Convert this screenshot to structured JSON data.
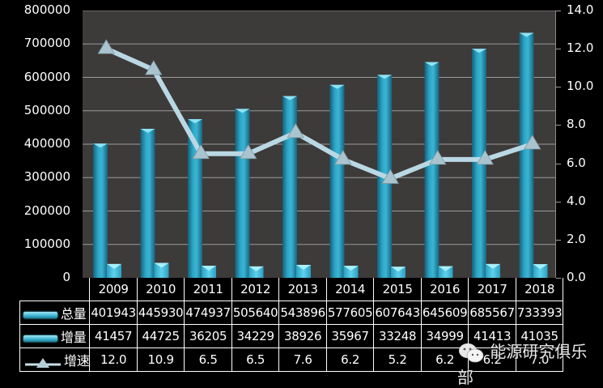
{
  "chart_data": {
    "type": "bar",
    "title": "",
    "xlabel": "",
    "ylabel": "",
    "categories": [
      "2009",
      "2010",
      "2011",
      "2012",
      "2013",
      "2014",
      "2015",
      "2016",
      "2017",
      "2018"
    ],
    "series": [
      {
        "name": "总量",
        "type": "bar",
        "axis": "left",
        "values": [
          401943,
          445930,
          474937,
          505640,
          543896,
          577605,
          607643,
          645609,
          685567,
          733393
        ],
        "color": "#2a9dbc"
      },
      {
        "name": "增量",
        "type": "bar",
        "axis": "left",
        "values": [
          41457,
          44725,
          36205,
          34229,
          38926,
          35967,
          33248,
          34999,
          41413,
          41035
        ],
        "color": "#4fc9e4"
      },
      {
        "name": "增速",
        "type": "line",
        "axis": "right",
        "values": [
          12.0,
          10.9,
          6.5,
          6.5,
          7.6,
          6.2,
          5.2,
          6.2,
          6.2,
          7.0
        ],
        "color": "#b7d6e2",
        "marker": "triangle"
      }
    ],
    "ylim": [
      0,
      800000
    ],
    "y2lim": [
      0,
      14.0
    ],
    "yticks": [
      "0",
      "100000",
      "200000",
      "300000",
      "400000",
      "500000",
      "600000",
      "700000",
      "800000"
    ],
    "y2ticks": [
      "0.0",
      "2.0",
      "4.0",
      "6.0",
      "8.0",
      "10.0",
      "12.0",
      "14.0"
    ],
    "grid": true,
    "legend_position": "data-table-left",
    "data_table": true,
    "plot_background": "#3d3a3a",
    "background": "#000000"
  },
  "table": {
    "rows": [
      {
        "label": "总量",
        "legend": "bar",
        "cells": [
          "401943",
          "445930",
          "474937",
          "505640",
          "543896",
          "577605",
          "607643",
          "645609",
          "685567",
          "733393"
        ]
      },
      {
        "label": "增量",
        "legend": "bar",
        "cells": [
          "41457",
          "44725",
          "36205",
          "34229",
          "38926",
          "35967",
          "33248",
          "34999",
          "41413",
          "41035"
        ]
      },
      {
        "label": "增速",
        "legend": "line",
        "cells": [
          "12.0",
          "10.9",
          "6.5",
          "6.5",
          "7.6",
          "6.2",
          "5.2",
          "6.2",
          "6.2",
          "7.0"
        ]
      }
    ]
  },
  "watermark": {
    "icon": "wechat-icon",
    "text": "能源研究俱乐部"
  }
}
